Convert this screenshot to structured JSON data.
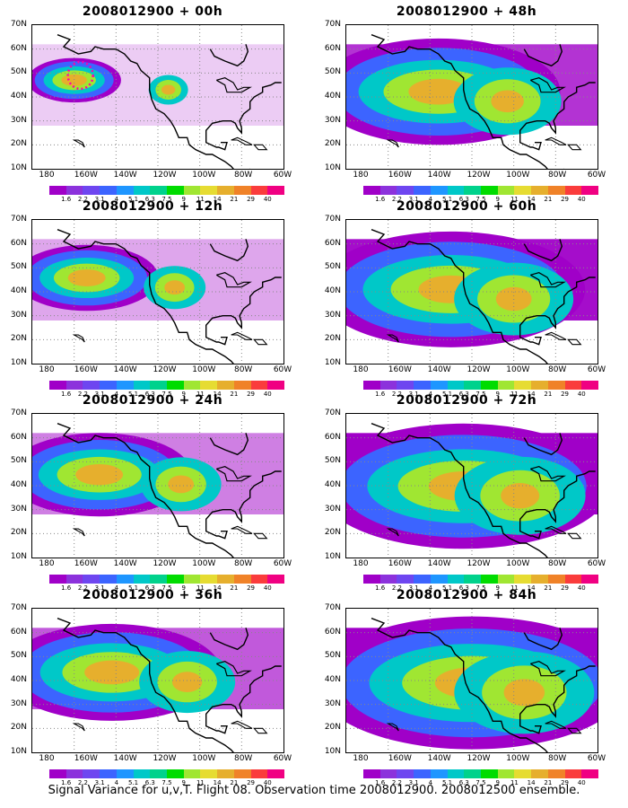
{
  "caption": "Signal Variance for u,v,T. Flight 08. Observation time 2008012900. 2008012500 ensemble.",
  "panels": [
    {
      "title": "2008012900 + 00h",
      "spread": 0.0,
      "scale": 0.55
    },
    {
      "title": "2008012900 + 12h",
      "spread": 0.15,
      "scale": 0.75
    },
    {
      "title": "2008012900 + 24h",
      "spread": 0.3,
      "scale": 0.9
    },
    {
      "title": "2008012900 + 36h",
      "spread": 0.45,
      "scale": 1.0
    },
    {
      "title": "2008012900 + 48h",
      "spread": 0.6,
      "scale": 1.05
    },
    {
      "title": "2008012900 + 60h",
      "spread": 0.75,
      "scale": 1.1
    },
    {
      "title": "2008012900 + 72h",
      "spread": 0.9,
      "scale": 1.15
    },
    {
      "title": "2008012900 + 84h",
      "spread": 1.0,
      "scale": 1.2
    }
  ],
  "y_labels": [
    "70N",
    "60N",
    "50N",
    "40N",
    "30N",
    "20N",
    "10N"
  ],
  "x_labels": [
    "180",
    "160W",
    "140W",
    "120W",
    "100W",
    "80W",
    "60W"
  ],
  "colorbar_labels": [
    "1.6",
    "2.2",
    "3.1",
    "4",
    "5.1",
    "6.3",
    "7.5",
    "9",
    "11",
    "14",
    "21",
    "29",
    "40"
  ],
  "colorbar_colors": [
    "#a000c8",
    "#8c32dc",
    "#6e46f0",
    "#3c64ff",
    "#1e96ff",
    "#00c8c8",
    "#00d28c",
    "#00dc00",
    "#a0e632",
    "#e6dc32",
    "#e6af2d",
    "#f08228",
    "#fa3c3c",
    "#f00082"
  ],
  "target_region_color": "#ff00aa"
}
